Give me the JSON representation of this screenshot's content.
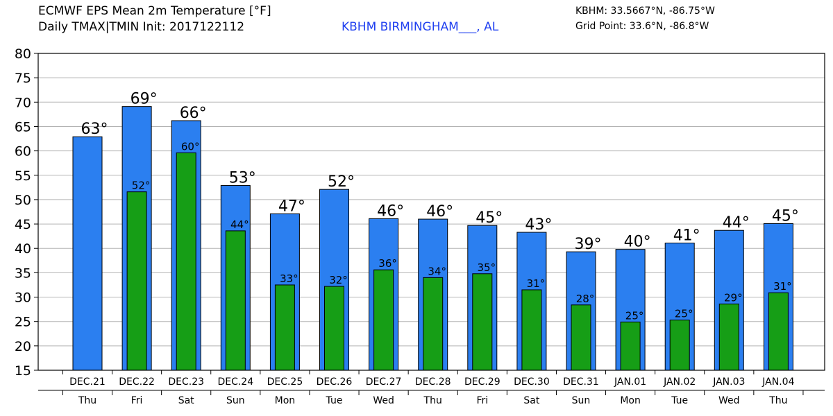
{
  "header": {
    "title": "ECMWF EPS Mean 2m Temperature [°F]",
    "subtitle": "Daily TMAX|TMIN Init: 2017122112",
    "location": "KBHM BIRMINGHAM___, AL",
    "station_coords": "KBHM: 33.5667°N, -86.75°W",
    "grid_point": "Grid Point: 33.6°N, -86.8°W"
  },
  "colors": {
    "tmax": "#2b7ff0",
    "tmin": "#169e16",
    "grid": "#b3b3b3",
    "location_text": "#1f3ff0"
  },
  "chart_data": {
    "type": "bar",
    "title": "ECMWF EPS Mean 2m Temperature [°F]",
    "ylim": [
      15,
      80
    ],
    "yticks": [
      15,
      20,
      25,
      30,
      35,
      40,
      45,
      50,
      55,
      60,
      65,
      70,
      75,
      80
    ],
    "grid": true,
    "categories": [
      "DEC.21",
      "DEC.22",
      "DEC.23",
      "DEC.24",
      "DEC.25",
      "DEC.26",
      "DEC.27",
      "DEC.28",
      "DEC.29",
      "DEC.30",
      "DEC.31",
      "JAN.01",
      "JAN.02",
      "JAN.03",
      "JAN.04"
    ],
    "weekdays": [
      "Thu",
      "Fri",
      "Sat",
      "Sun",
      "Mon",
      "Tue",
      "Wed",
      "Thu",
      "Fri",
      "Sat",
      "Sun",
      "Mon",
      "Tue",
      "Wed",
      "Thu"
    ],
    "series": [
      {
        "name": "TMAX",
        "values": [
          62.9,
          69.1,
          66.2,
          52.9,
          47.1,
          52.1,
          46.1,
          46.0,
          44.7,
          43.3,
          39.3,
          39.8,
          41.1,
          43.7,
          45.1
        ],
        "labels": [
          "63°",
          "69°",
          "66°",
          "53°",
          "47°",
          "52°",
          "46°",
          "46°",
          "45°",
          "43°",
          "39°",
          "40°",
          "41°",
          "44°",
          "45°"
        ]
      },
      {
        "name": "TMIN",
        "values": [
          null,
          51.6,
          59.6,
          43.6,
          32.5,
          32.2,
          35.6,
          34.0,
          34.8,
          31.5,
          28.4,
          24.9,
          25.3,
          28.6,
          30.9
        ],
        "labels": [
          "",
          "52°",
          "60°",
          "44°",
          "33°",
          "32°",
          "36°",
          "34°",
          "35°",
          "31°",
          "28°",
          "25°",
          "25°",
          "29°",
          "31°"
        ]
      }
    ]
  }
}
